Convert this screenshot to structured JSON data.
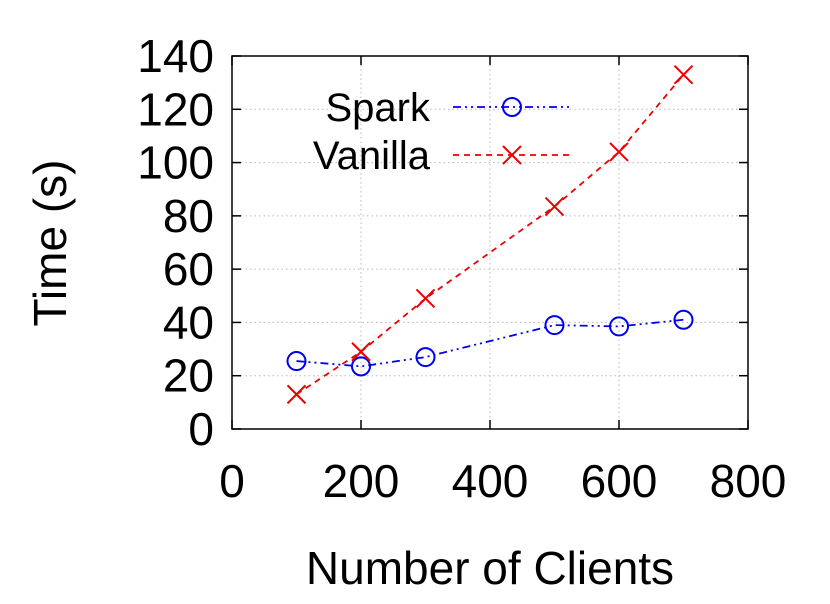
{
  "chart_data": {
    "type": "line",
    "xlabel": "Number of Clients",
    "ylabel": "Time (s)",
    "xlim": [
      0,
      800
    ],
    "ylim": [
      0,
      140
    ],
    "xticks": [
      0,
      200,
      400,
      600,
      800
    ],
    "yticks": [
      0,
      20,
      40,
      60,
      80,
      100,
      120,
      140
    ],
    "grid": true,
    "legend_position": "top-left",
    "series": [
      {
        "name": "Spark",
        "color": "#0000ee",
        "marker": "circle",
        "line_style": "dash-dot-dot",
        "x": [
          100,
          200,
          300,
          500,
          600,
          700
        ],
        "y": [
          25.5,
          23.5,
          27,
          39,
          38.5,
          41
        ]
      },
      {
        "name": "Vanilla",
        "color": "#ee0000",
        "marker": "cross",
        "line_style": "dashed",
        "x": [
          100,
          200,
          300,
          500,
          600,
          700
        ],
        "y": [
          13,
          29,
          49,
          83.5,
          104,
          133
        ]
      }
    ]
  }
}
